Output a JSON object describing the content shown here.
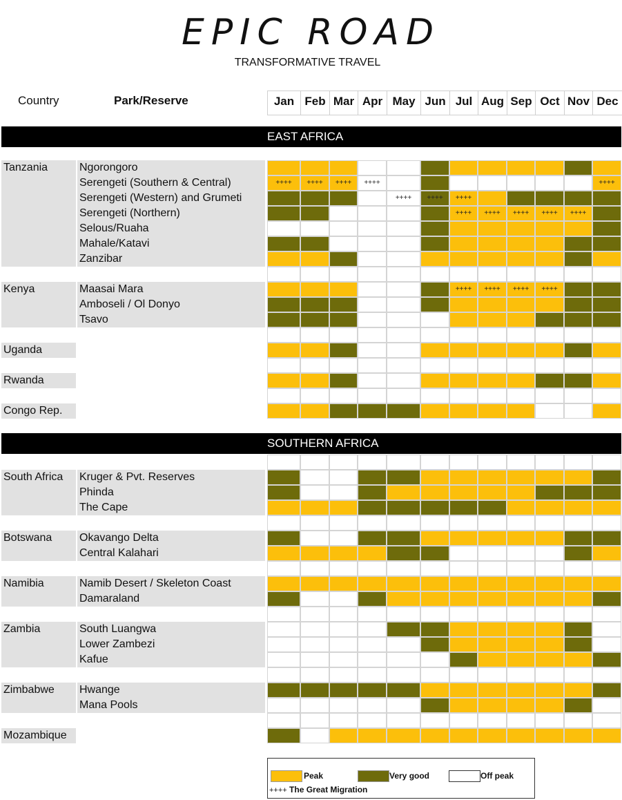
{
  "brand": {
    "logo": "EPIC ROAD",
    "tagline": "TRANSFORMATIVE TRAVEL"
  },
  "headers": {
    "country": "Country",
    "park": "Park/Reserve"
  },
  "months": [
    "Jan",
    "Feb",
    "Mar",
    "Apr",
    "May",
    "Jun",
    "Jul",
    "Aug",
    "Sep",
    "Oct",
    "Nov",
    "Dec"
  ],
  "colors": {
    "peak": "#fcbf0b",
    "very_good": "#6e6b0b",
    "off_peak": "#ffffff",
    "label_bg": "#e1e1e1"
  },
  "legend": {
    "peak": "Peak",
    "very_good": "Very good",
    "off_peak": "Off peak",
    "migration_mark": "++++",
    "migration": "The Great Migration"
  },
  "regions": [
    {
      "name": "EAST AFRICA",
      "countries": [
        {
          "country": "Tanzania",
          "parks": [
            {
              "name": "Ngorongoro",
              "months": "PPP..VPPPPVP",
              "mig": ""
            },
            {
              "name": "Serengeti (Southern & Central)",
              "months": "PPP..V.....P",
              "mig": "1111.......1"
            },
            {
              "name": "Serengeti (Western) and Grumeti",
              "months": "VVV..VPPVVVV",
              "mig": "....111....."
            },
            {
              "name": "Serengeti (Northern)",
              "months": "VV...VPPPPPV",
              "mig": "......11111."
            },
            {
              "name": "Selous/Ruaha",
              "months": ".....VPPPPPV",
              "mig": ""
            },
            {
              "name": "Mahale/Katavi",
              "months": "VV...VPPPPVV",
              "mig": ""
            },
            {
              "name": "Zanzibar",
              "months": "PPV..PPPPPVP",
              "mig": ""
            }
          ]
        },
        {
          "country": "Kenya",
          "parks": [
            {
              "name": "Maasai Mara",
              "months": "PPP..VPPPPVV",
              "mig": "......1111.."
            },
            {
              "name": "Amboseli / Ol Donyo",
              "months": "VVV..VPPPPVV",
              "mig": ""
            },
            {
              "name": "Tsavo",
              "months": "VVV...PPPVVV",
              "mig": ""
            }
          ]
        },
        {
          "country": "Uganda",
          "parks": [
            {
              "name": "",
              "months": "PPV..PPPPPVP",
              "mig": ""
            }
          ]
        },
        {
          "country": "Rwanda",
          "parks": [
            {
              "name": "",
              "months": "PPV..PPPPVVP",
              "mig": ""
            }
          ]
        },
        {
          "country": "Congo Rep.",
          "parks": [
            {
              "name": "",
              "months": "PPVVVPPPP..P",
              "mig": ""
            }
          ]
        }
      ]
    },
    {
      "name": "SOUTHERN AFRICA",
      "countries": [
        {
          "country": "South Africa",
          "parks": [
            {
              "name": "Kruger & Pvt. Reserves",
              "months": "V..VVPPPPPPV",
              "mig": ""
            },
            {
              "name": "Phinda",
              "months": "V..VPPPPPVVV",
              "mig": ""
            },
            {
              "name": "The Cape",
              "months": "PPPVVVVVPPPP",
              "mig": ""
            }
          ]
        },
        {
          "country": "Botswana",
          "parks": [
            {
              "name": "Okavango Delta",
              "months": "V..VVPPPPPVV",
              "mig": ""
            },
            {
              "name": "Central Kalahari",
              "months": "PPPPVV....VP",
              "mig": ""
            }
          ]
        },
        {
          "country": "Namibia",
          "parks": [
            {
              "name": "Namib Desert / Skeleton Coast",
              "months": "PPPPPPPPPPPP",
              "mig": ""
            },
            {
              "name": "Damaraland",
              "months": "V..VPPPPPPPV",
              "mig": ""
            }
          ]
        },
        {
          "country": "Zambia",
          "parks": [
            {
              "name": "South Luangwa",
              "months": "....VVPPPPV.",
              "mig": ""
            },
            {
              "name": "Lower Zambezi",
              "months": ".....VPPPPV.",
              "mig": ""
            },
            {
              "name": "Kafue",
              "months": "......VPPPPV",
              "mig": ""
            }
          ]
        },
        {
          "country": "Zimbabwe",
          "parks": [
            {
              "name": "Hwange",
              "months": "VVVVVPPPPPPV",
              "mig": ""
            },
            {
              "name": "Mana Pools",
              "months": ".....VPPPPV.",
              "mig": ""
            }
          ]
        },
        {
          "country": "Mozambique",
          "parks": [
            {
              "name": "",
              "months": "V.PPPPPPPPPP",
              "mig": ""
            }
          ]
        }
      ]
    }
  ]
}
